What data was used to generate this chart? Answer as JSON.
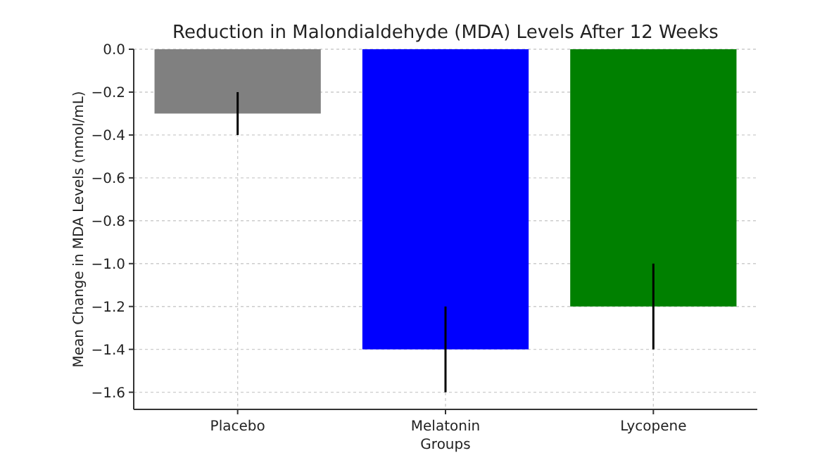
{
  "chart_data": {
    "type": "bar",
    "title": "Reduction in Malondialdehyde (MDA) Levels After 12 Weeks",
    "xlabel": "Groups",
    "ylabel": "Mean Change in MDA Levels (nmol/mL)",
    "categories": [
      "Placebo",
      "Melatonin",
      "Lycopene"
    ],
    "values": [
      -0.3,
      -1.4,
      -1.2
    ],
    "colors": [
      "#808080",
      "#0000ff",
      "#008000"
    ],
    "errors": [
      0.1,
      0.2,
      0.2
    ],
    "ylim": [
      -1.68,
      0
    ],
    "yticks": [
      {
        "value": 0,
        "label": "0.0"
      },
      {
        "value": -0.2,
        "label": "−0.2"
      },
      {
        "value": -0.4,
        "label": "−0.4"
      },
      {
        "value": -0.6,
        "label": "−0.6"
      },
      {
        "value": -0.8,
        "label": "−0.8"
      },
      {
        "value": -1.0,
        "label": "−1.0"
      },
      {
        "value": -1.2,
        "label": "−1.2"
      },
      {
        "value": -1.4,
        "label": "−1.4"
      },
      {
        "value": -1.6,
        "label": "−1.6"
      }
    ],
    "grid": true
  }
}
